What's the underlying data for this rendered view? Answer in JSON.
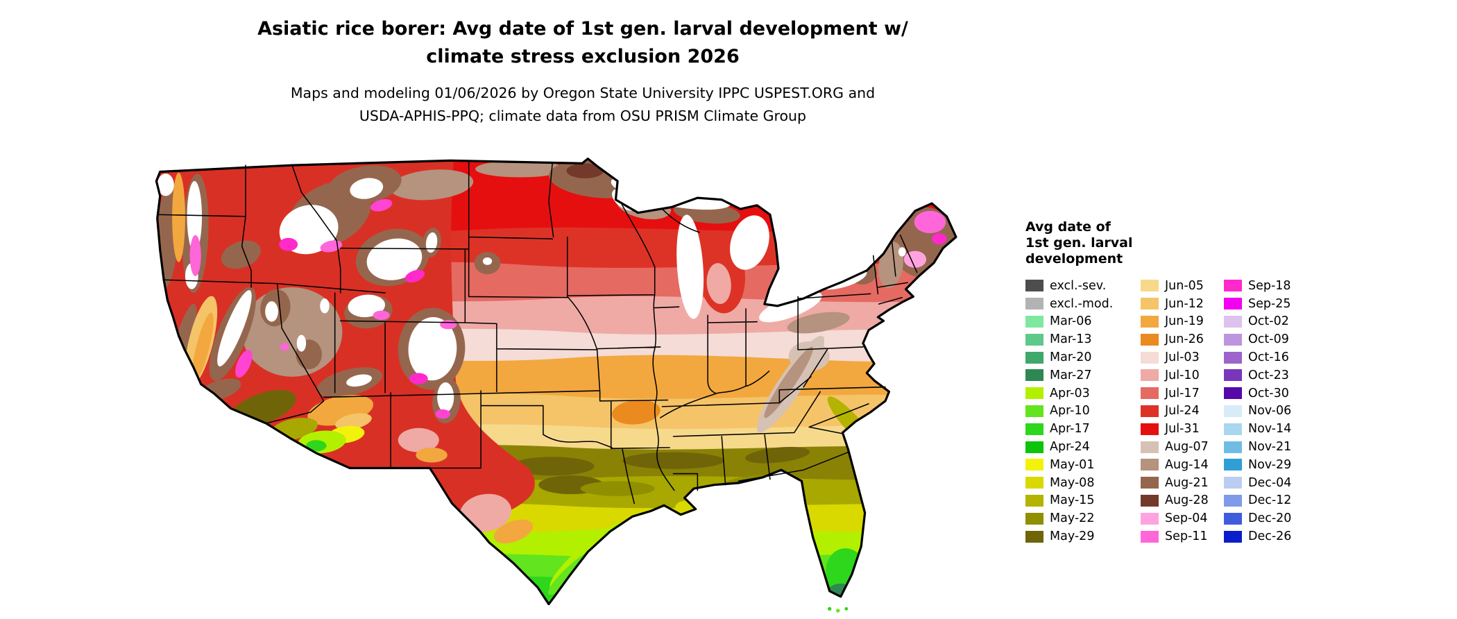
{
  "header": {
    "title_line1": "Asiatic rice borer: Avg date of 1st gen. larval development w/",
    "title_line2": "climate stress exclusion 2026",
    "subtitle_line1": "Maps and modeling 01/06/2026 by Oregon State University IPPC USPEST.ORG and",
    "subtitle_line2": "USDA-APHIS-PPQ; climate data from OSU PRISM Climate Group"
  },
  "map": {
    "region": "Contiguous United States",
    "type": "choropleth raster of model output dates",
    "water_color": "#ffffff",
    "boundary_color": "#000000"
  },
  "legend": {
    "title_lines": [
      "Avg date of",
      "1st gen. larval",
      "development"
    ],
    "columns": [
      [
        {
          "label": "excl.-sev.",
          "color": "#4d4d4d"
        },
        {
          "label": "excl.-mod.",
          "color": "#b3b3b3"
        },
        {
          "label": "Mar-06",
          "color": "#7fe8a0"
        },
        {
          "label": "Mar-13",
          "color": "#5fc98a"
        },
        {
          "label": "Mar-20",
          "color": "#3fa86a"
        },
        {
          "label": "Mar-27",
          "color": "#2f8752"
        },
        {
          "label": "Apr-03",
          "color": "#b3f000"
        },
        {
          "label": "Apr-10",
          "color": "#62e41e"
        },
        {
          "label": "Apr-17",
          "color": "#2ed61c"
        },
        {
          "label": "Apr-24",
          "color": "#0cc40c"
        },
        {
          "label": "May-01",
          "color": "#f2f20c"
        },
        {
          "label": "May-08",
          "color": "#d9d900"
        },
        {
          "label": "May-15",
          "color": "#b3b300"
        },
        {
          "label": "May-22",
          "color": "#8f8f00"
        },
        {
          "label": "May-29",
          "color": "#6f6408"
        }
      ],
      [
        {
          "label": "Jun-05",
          "color": "#f7d98c"
        },
        {
          "label": "Jun-12",
          "color": "#f5c469"
        },
        {
          "label": "Jun-19",
          "color": "#f2a83f"
        },
        {
          "label": "Jun-26",
          "color": "#ea8a1f"
        },
        {
          "label": "Jul-03",
          "color": "#f5dcd6"
        },
        {
          "label": "Jul-10",
          "color": "#efaaa5"
        },
        {
          "label": "Jul-17",
          "color": "#e56a62"
        },
        {
          "label": "Jul-24",
          "color": "#dd3327"
        },
        {
          "label": "Jul-31",
          "color": "#e60f0f"
        },
        {
          "label": "Aug-07",
          "color": "#d6c2b5"
        },
        {
          "label": "Aug-14",
          "color": "#b5937e"
        },
        {
          "label": "Aug-21",
          "color": "#95664e"
        },
        {
          "label": "Aug-28",
          "color": "#73392a"
        },
        {
          "label": "Sep-04",
          "color": "#ffa3e0"
        },
        {
          "label": "Sep-11",
          "color": "#ff66d9"
        }
      ],
      [
        {
          "label": "Sep-18",
          "color": "#ff29cc"
        },
        {
          "label": "Sep-25",
          "color": "#f200f2"
        },
        {
          "label": "Oct-02",
          "color": "#dcc2ec"
        },
        {
          "label": "Oct-09",
          "color": "#bd94dd"
        },
        {
          "label": "Oct-16",
          "color": "#9c64cc"
        },
        {
          "label": "Oct-23",
          "color": "#7a35bd"
        },
        {
          "label": "Oct-30",
          "color": "#5708a8"
        },
        {
          "label": "Nov-06",
          "color": "#d8ecf7"
        },
        {
          "label": "Nov-14",
          "color": "#a8d7ef"
        },
        {
          "label": "Nov-21",
          "color": "#6fbde4"
        },
        {
          "label": "Nov-29",
          "color": "#2f9fd6"
        },
        {
          "label": "Dec-04",
          "color": "#bccdf2"
        },
        {
          "label": "Dec-12",
          "color": "#7f9ae8"
        },
        {
          "label": "Dec-20",
          "color": "#3f5cdd"
        },
        {
          "label": "Dec-26",
          "color": "#0a1ecc"
        }
      ]
    ]
  }
}
